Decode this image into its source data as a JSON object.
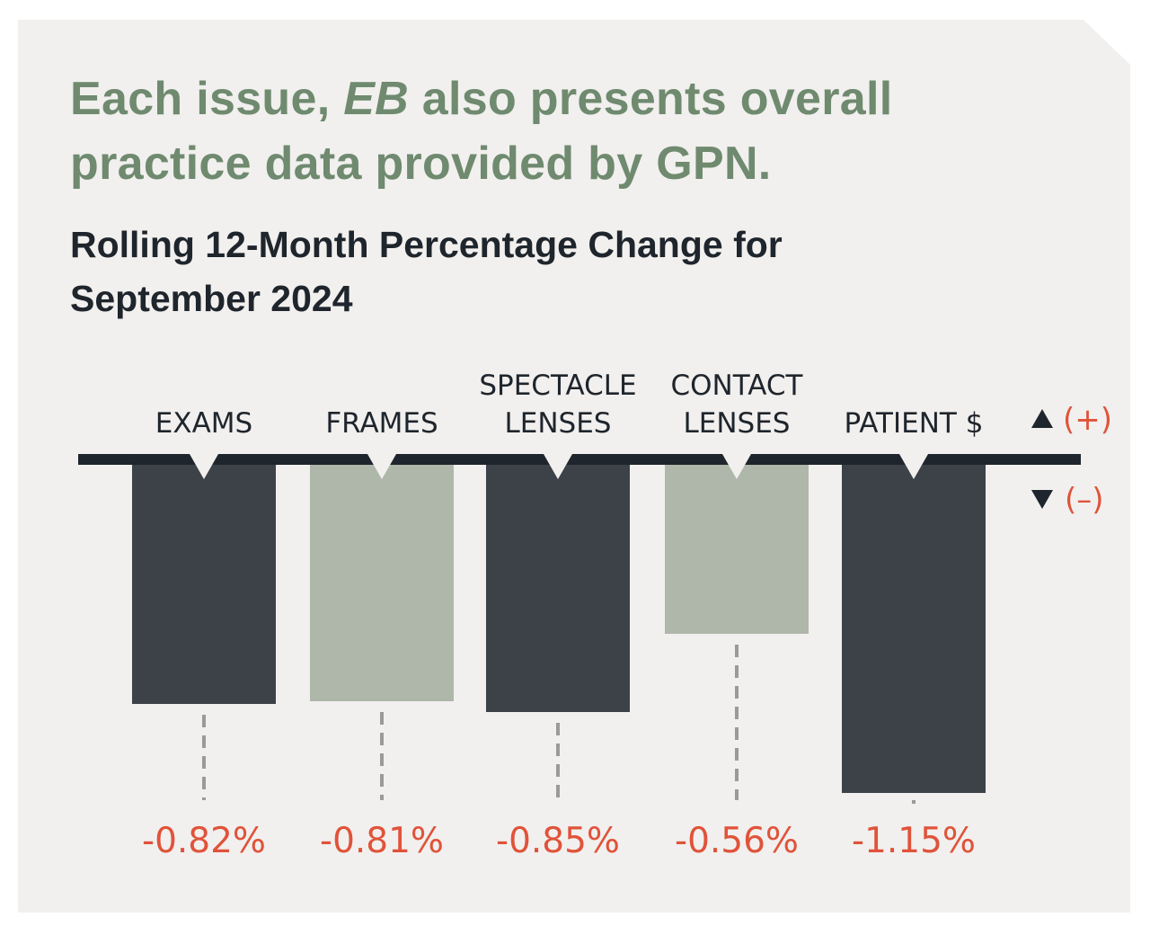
{
  "headline": {
    "part1": "Each issue, ",
    "italic": "EB",
    "part2": " also presents overall practice data provided by GPN."
  },
  "chart_data": {
    "type": "bar",
    "title": "Rolling 12-Month Percentage Change for September 2024",
    "categories": [
      [
        "EXAMS"
      ],
      [
        "FRAMES"
      ],
      [
        "SPECTACLE",
        "LENSES"
      ],
      [
        "CONTACT",
        "LENSES"
      ],
      [
        "PATIENT $"
      ]
    ],
    "values": [
      -0.82,
      -0.81,
      -0.85,
      -0.56,
      -1.15
    ],
    "value_labels": [
      "-0.82%",
      "-0.81%",
      "-0.85%",
      "-0.56%",
      "-1.15%"
    ],
    "bar_colors": [
      "#3d4249",
      "#afb6aa",
      "#3d4249",
      "#afb6aa",
      "#3d4249"
    ],
    "legend": {
      "positive": "(+)",
      "negative": "(–)",
      "positive_icon": "triangle-up",
      "negative_icon": "triangle-down"
    },
    "baseline_color": "#1f252c",
    "label_color": "#e0533a"
  }
}
